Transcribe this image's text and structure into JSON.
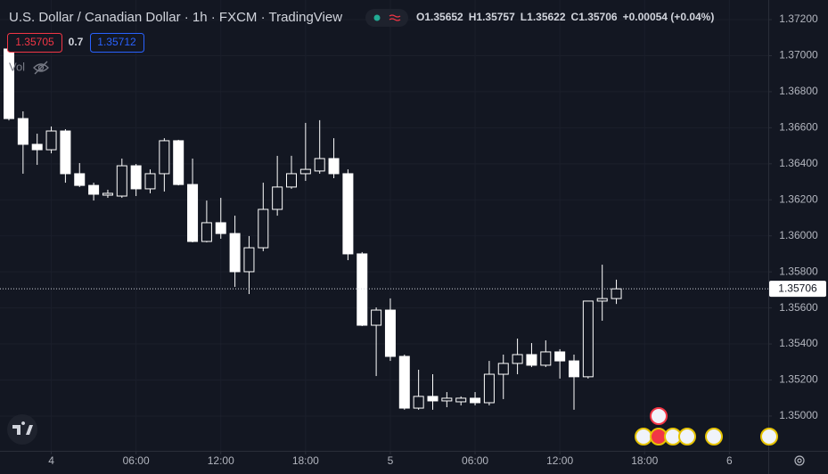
{
  "chart_data": {
    "type": "candlestick",
    "title": "U.S. Dollar / Canadian Dollar · 1h · FXCM · TradingView",
    "ohlc_legend": [
      {
        "label": "O",
        "value": 1.35652
      },
      {
        "label": "H",
        "value": 1.35757
      },
      {
        "label": "L",
        "value": 1.35622
      },
      {
        "label": "C",
        "value": 1.35706
      }
    ],
    "change": "+0.00054 (+0.04%)",
    "bid": "1.35705",
    "spread": "0.7",
    "ask": "1.35712",
    "volume_label": "Vol",
    "categories": [
      null,
      null,
      null,
      null,
      null,
      null,
      null,
      null,
      null,
      null,
      null,
      null,
      null,
      null,
      null,
      null,
      null,
      null,
      null,
      null,
      null,
      null,
      null,
      null,
      null,
      null,
      null,
      null,
      null,
      null,
      null,
      null,
      null,
      null,
      null,
      null,
      null,
      null,
      null,
      null,
      null,
      null,
      null,
      null
    ],
    "open": [
      1.37037,
      1.36651,
      1.36508,
      1.36478,
      1.36582,
      1.36345,
      1.3628,
      1.36226,
      1.36221,
      1.36389,
      1.36261,
      1.36345,
      1.36528,
      1.36285,
      1.35969,
      1.36073,
      1.36013,
      1.35801,
      1.35934,
      1.36147,
      1.36271,
      1.36345,
      1.3636,
      1.36429,
      1.36345,
      1.359,
      1.35504,
      1.35588,
      1.35331,
      1.35044,
      1.35109,
      1.35084,
      1.35079,
      1.35099,
      1.35074,
      1.35232,
      1.35292,
      1.35341,
      1.35282,
      1.35356,
      1.35306,
      1.35218,
      1.35638,
      1.35652
    ],
    "high": [
      1.37052,
      1.36691,
      1.36567,
      1.36607,
      1.36592,
      1.36404,
      1.36295,
      1.36256,
      1.36429,
      1.36399,
      1.36369,
      1.36542,
      1.36533,
      1.36429,
      1.36196,
      1.36211,
      1.36112,
      1.35999,
      1.36295,
      1.36444,
      1.36444,
      1.36627,
      1.36642,
      1.36542,
      1.36369,
      1.3591,
      1.35603,
      1.35653,
      1.35341,
      1.35257,
      1.35232,
      1.35133,
      1.35109,
      1.35133,
      1.35306,
      1.35341,
      1.3543,
      1.35405,
      1.3542,
      1.35371,
      1.35341,
      1.35638,
      1.3584,
      1.35757
    ],
    "low": [
      1.36641,
      1.36345,
      1.36394,
      1.36458,
      1.36295,
      1.36271,
      1.36196,
      1.36211,
      1.36211,
      1.36221,
      1.36236,
      1.36246,
      1.3628,
      1.35964,
      1.35964,
      1.35984,
      1.35717,
      1.35677,
      1.35915,
      1.36112,
      1.36261,
      1.36305,
      1.36345,
      1.3632,
      1.35865,
      1.35499,
      1.35222,
      1.35306,
      1.35035,
      1.35035,
      1.35035,
      1.35049,
      1.35059,
      1.35059,
      1.35059,
      1.35094,
      1.35232,
      1.35272,
      1.35272,
      1.35208,
      1.35035,
      1.35208,
      1.35529,
      1.35622
    ],
    "close": [
      1.36651,
      1.36508,
      1.36478,
      1.36582,
      1.36345,
      1.3628,
      1.36231,
      1.36236,
      1.36389,
      1.36261,
      1.36345,
      1.36528,
      1.36285,
      1.35969,
      1.36073,
      1.36013,
      1.35801,
      1.35934,
      1.36147,
      1.36271,
      1.36345,
      1.36369,
      1.36429,
      1.36345,
      1.359,
      1.35504,
      1.35588,
      1.35331,
      1.35044,
      1.35109,
      1.35084,
      1.35099,
      1.35099,
      1.35074,
      1.35232,
      1.35292,
      1.35341,
      1.35282,
      1.35356,
      1.35306,
      1.35218,
      1.35638,
      1.35652,
      1.35706
    ],
    "colors": {
      "up": "#ffffff",
      "down": "#ffffff",
      "background": "#131722"
    },
    "up_style": "hollow",
    "ylim": [
      1.34797,
      1.37309
    ],
    "yticks": [
      {
        "value": 1.372,
        "label": "1.37200"
      },
      {
        "value": 1.37,
        "label": "1.37000"
      },
      {
        "value": 1.368,
        "label": "1.36800"
      },
      {
        "value": 1.366,
        "label": "1.36600"
      },
      {
        "value": 1.364,
        "label": "1.36400"
      },
      {
        "value": 1.362,
        "label": "1.36200"
      },
      {
        "value": 1.36,
        "label": "1.36000"
      },
      {
        "value": 1.358,
        "label": "1.35800"
      },
      {
        "value": 1.356,
        "label": "1.35600"
      },
      {
        "value": 1.354,
        "label": "1.35400"
      },
      {
        "value": 1.352,
        "label": "1.35200"
      },
      {
        "value": 1.35,
        "label": "1.35000"
      }
    ],
    "xticks": [
      {
        "value": 3,
        "label": "4"
      },
      {
        "value": 9,
        "label": "06:00"
      },
      {
        "value": 15,
        "label": "12:00"
      },
      {
        "value": 21,
        "label": "18:00"
      },
      {
        "value": 27,
        "label": "5"
      },
      {
        "value": 33,
        "label": "06:00"
      },
      {
        "value": 39,
        "label": "12:00"
      },
      {
        "value": 45,
        "label": "18:00"
      },
      {
        "value": 51,
        "label": "6"
      }
    ],
    "grid": true
  }
}
